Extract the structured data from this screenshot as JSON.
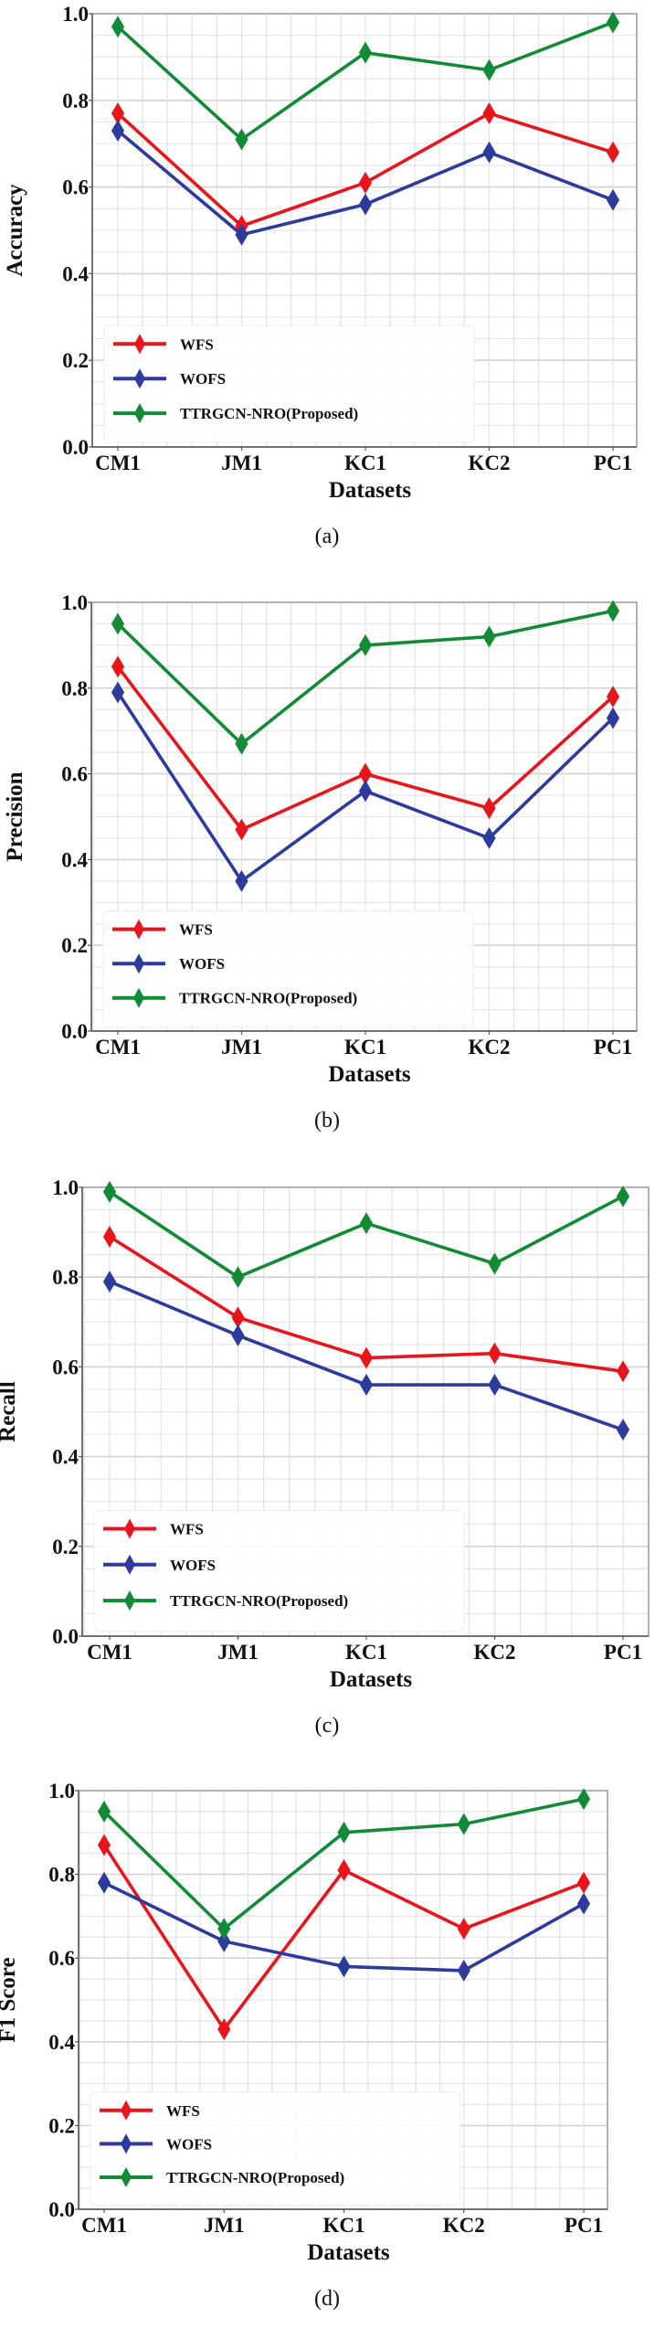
{
  "chart_data": [
    {
      "type": "line",
      "panel_label": "(a)",
      "title": "",
      "xlabel": "Datasets",
      "ylabel": "Accuracy",
      "categories": [
        "CM1",
        "JM1",
        "KC1",
        "KC2",
        "PC1"
      ],
      "ylim": [
        0.0,
        1.0
      ],
      "yticks": [
        "0.0",
        "0.2",
        "0.4",
        "0.6",
        "0.8",
        "1.0"
      ],
      "grid": true,
      "legend_position": "lower-left",
      "series": [
        {
          "name": "WFS",
          "color": "#e8161c",
          "marker": "diamond",
          "values": [
            0.77,
            0.51,
            0.61,
            0.77,
            0.68
          ]
        },
        {
          "name": "WOFS",
          "color": "#2d3c9c",
          "marker": "diamond",
          "values": [
            0.73,
            0.49,
            0.56,
            0.68,
            0.57
          ]
        },
        {
          "name": "TTRGCN-NRO(Proposed)",
          "color": "#138a36",
          "marker": "diamond",
          "values": [
            0.97,
            0.71,
            0.91,
            0.87,
            0.98
          ]
        }
      ]
    },
    {
      "type": "line",
      "panel_label": "(b)",
      "title": "",
      "xlabel": "Datasets",
      "ylabel": "Precision",
      "categories": [
        "CM1",
        "JM1",
        "KC1",
        "KC2",
        "PC1"
      ],
      "ylim": [
        0.0,
        1.0
      ],
      "yticks": [
        "0.0",
        "0.2",
        "0.4",
        "0.6",
        "0.8",
        "1.0"
      ],
      "grid": true,
      "legend_position": "lower-left",
      "series": [
        {
          "name": "WFS",
          "color": "#e8161c",
          "marker": "diamond",
          "values": [
            0.85,
            0.47,
            0.6,
            0.52,
            0.78
          ]
        },
        {
          "name": "WOFS",
          "color": "#2d3c9c",
          "marker": "diamond",
          "values": [
            0.79,
            0.35,
            0.56,
            0.45,
            0.73
          ]
        },
        {
          "name": "TTRGCN-NRO(Proposed)",
          "color": "#138a36",
          "marker": "diamond",
          "values": [
            0.95,
            0.67,
            0.9,
            0.92,
            0.98
          ]
        }
      ]
    },
    {
      "type": "line",
      "panel_label": "(c)",
      "title": "",
      "xlabel": "Datasets",
      "ylabel": "Recall",
      "categories": [
        "CM1",
        "JM1",
        "KC1",
        "KC2",
        "PC1"
      ],
      "ylim": [
        0.0,
        1.0
      ],
      "yticks": [
        "0.0",
        "0.2",
        "0.4",
        "0.6",
        "0.8",
        "1.0"
      ],
      "grid": true,
      "legend_position": "lower-left",
      "series": [
        {
          "name": "WFS",
          "color": "#e8161c",
          "marker": "diamond",
          "values": [
            0.89,
            0.71,
            0.62,
            0.63,
            0.59
          ]
        },
        {
          "name": "WOFS",
          "color": "#2d3c9c",
          "marker": "diamond",
          "values": [
            0.79,
            0.67,
            0.56,
            0.56,
            0.46
          ]
        },
        {
          "name": "TTRGCN-NRO(Proposed)",
          "color": "#138a36",
          "marker": "diamond",
          "values": [
            0.99,
            0.8,
            0.92,
            0.83,
            0.98
          ]
        }
      ]
    },
    {
      "type": "line",
      "panel_label": "(d)",
      "title": "",
      "xlabel": "Datasets",
      "ylabel": "F1 Score",
      "categories": [
        "CM1",
        "JM1",
        "KC1",
        "KC2",
        "PC1"
      ],
      "ylim": [
        0.0,
        1.0
      ],
      "yticks": [
        "0.0",
        "0.2",
        "0.4",
        "0.6",
        "0.8",
        "1.0"
      ],
      "grid": true,
      "legend_position": "lower-left",
      "series": [
        {
          "name": "WFS",
          "color": "#e8161c",
          "marker": "diamond",
          "values": [
            0.87,
            0.43,
            0.81,
            0.67,
            0.78
          ]
        },
        {
          "name": "WOFS",
          "color": "#2d3c9c",
          "marker": "diamond",
          "values": [
            0.78,
            0.64,
            0.58,
            0.57,
            0.73
          ]
        },
        {
          "name": "TTRGCN-NRO(Proposed)",
          "color": "#138a36",
          "marker": "diamond",
          "values": [
            0.95,
            0.67,
            0.9,
            0.92,
            0.98
          ]
        }
      ]
    }
  ]
}
